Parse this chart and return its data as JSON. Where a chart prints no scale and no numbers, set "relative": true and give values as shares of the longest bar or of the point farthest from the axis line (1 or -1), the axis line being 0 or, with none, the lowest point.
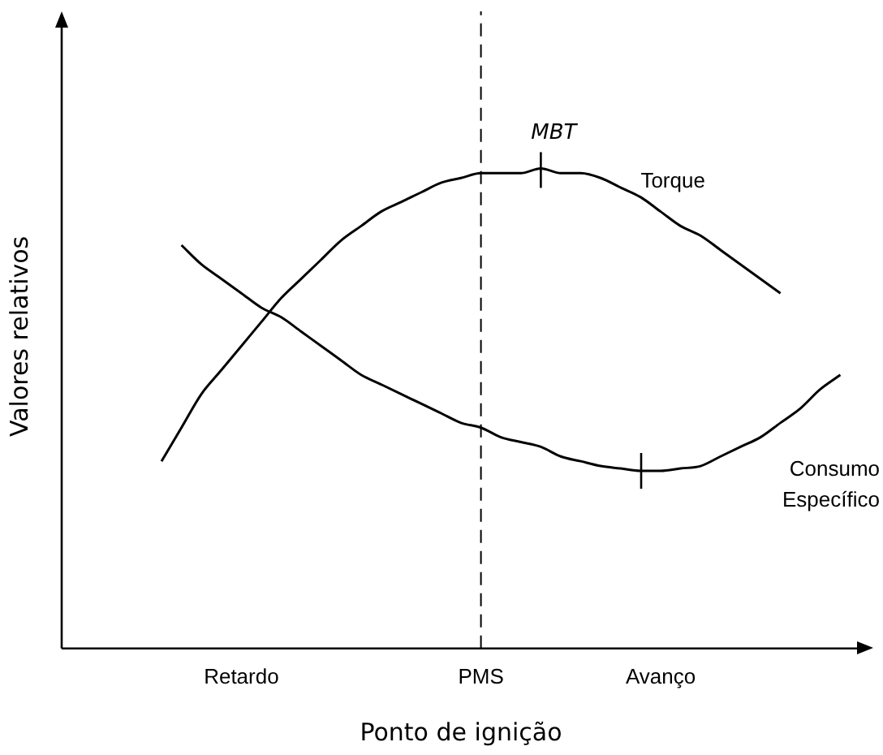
{
  "chart_data": {
    "type": "line",
    "relative": true,
    "xlabel": "Ponto de ignição",
    "ylabel": "Valores relativos",
    "categories": [
      null,
      null,
      null,
      null,
      null,
      null,
      null,
      null,
      null,
      "Retardo",
      null,
      null,
      null,
      null,
      null,
      null,
      null,
      null,
      null,
      null,
      null,
      "PMS",
      null,
      null,
      null,
      null,
      null,
      null,
      null,
      null,
      "Avanço",
      null,
      null,
      null,
      null,
      null,
      null,
      null,
      null,
      null,
      null
    ],
    "series": [
      {
        "name": "Torque",
        "color": "#000000",
        "values": [
          null,
          null,
          null,
          null,
          null,
          0.39,
          0.46,
          0.53,
          0.58,
          0.63,
          0.68,
          0.73,
          0.77,
          0.81,
          0.85,
          0.88,
          0.91,
          0.93,
          0.95,
          0.97,
          0.98,
          0.99,
          0.99,
          0.99,
          1.0,
          0.99,
          0.99,
          0.98,
          0.96,
          0.94,
          0.91,
          0.88,
          0.86,
          0.83,
          0.8,
          0.77,
          0.74,
          null,
          null,
          null,
          null
        ]
      },
      {
        "name": "Consumo Específico",
        "color": "#000000",
        "values": [
          null,
          null,
          null,
          null,
          null,
          null,
          0.84,
          0.8,
          0.77,
          0.74,
          0.71,
          0.69,
          0.66,
          0.63,
          0.6,
          0.57,
          0.55,
          0.53,
          0.51,
          0.49,
          0.47,
          0.46,
          0.44,
          0.43,
          0.42,
          0.4,
          0.39,
          0.38,
          0.375,
          0.37,
          0.37,
          0.375,
          0.38,
          0.4,
          0.42,
          0.44,
          0.47,
          0.5,
          0.54,
          0.57,
          null
        ]
      }
    ],
    "ref_lines": [
      {
        "axis": "x",
        "value": "PMS",
        "line_style": "dashed",
        "color": "#000000"
      }
    ],
    "annotations": [
      "MBT"
    ],
    "grid": false,
    "legend": false,
    "marker": "none",
    "line_style": "solid"
  }
}
